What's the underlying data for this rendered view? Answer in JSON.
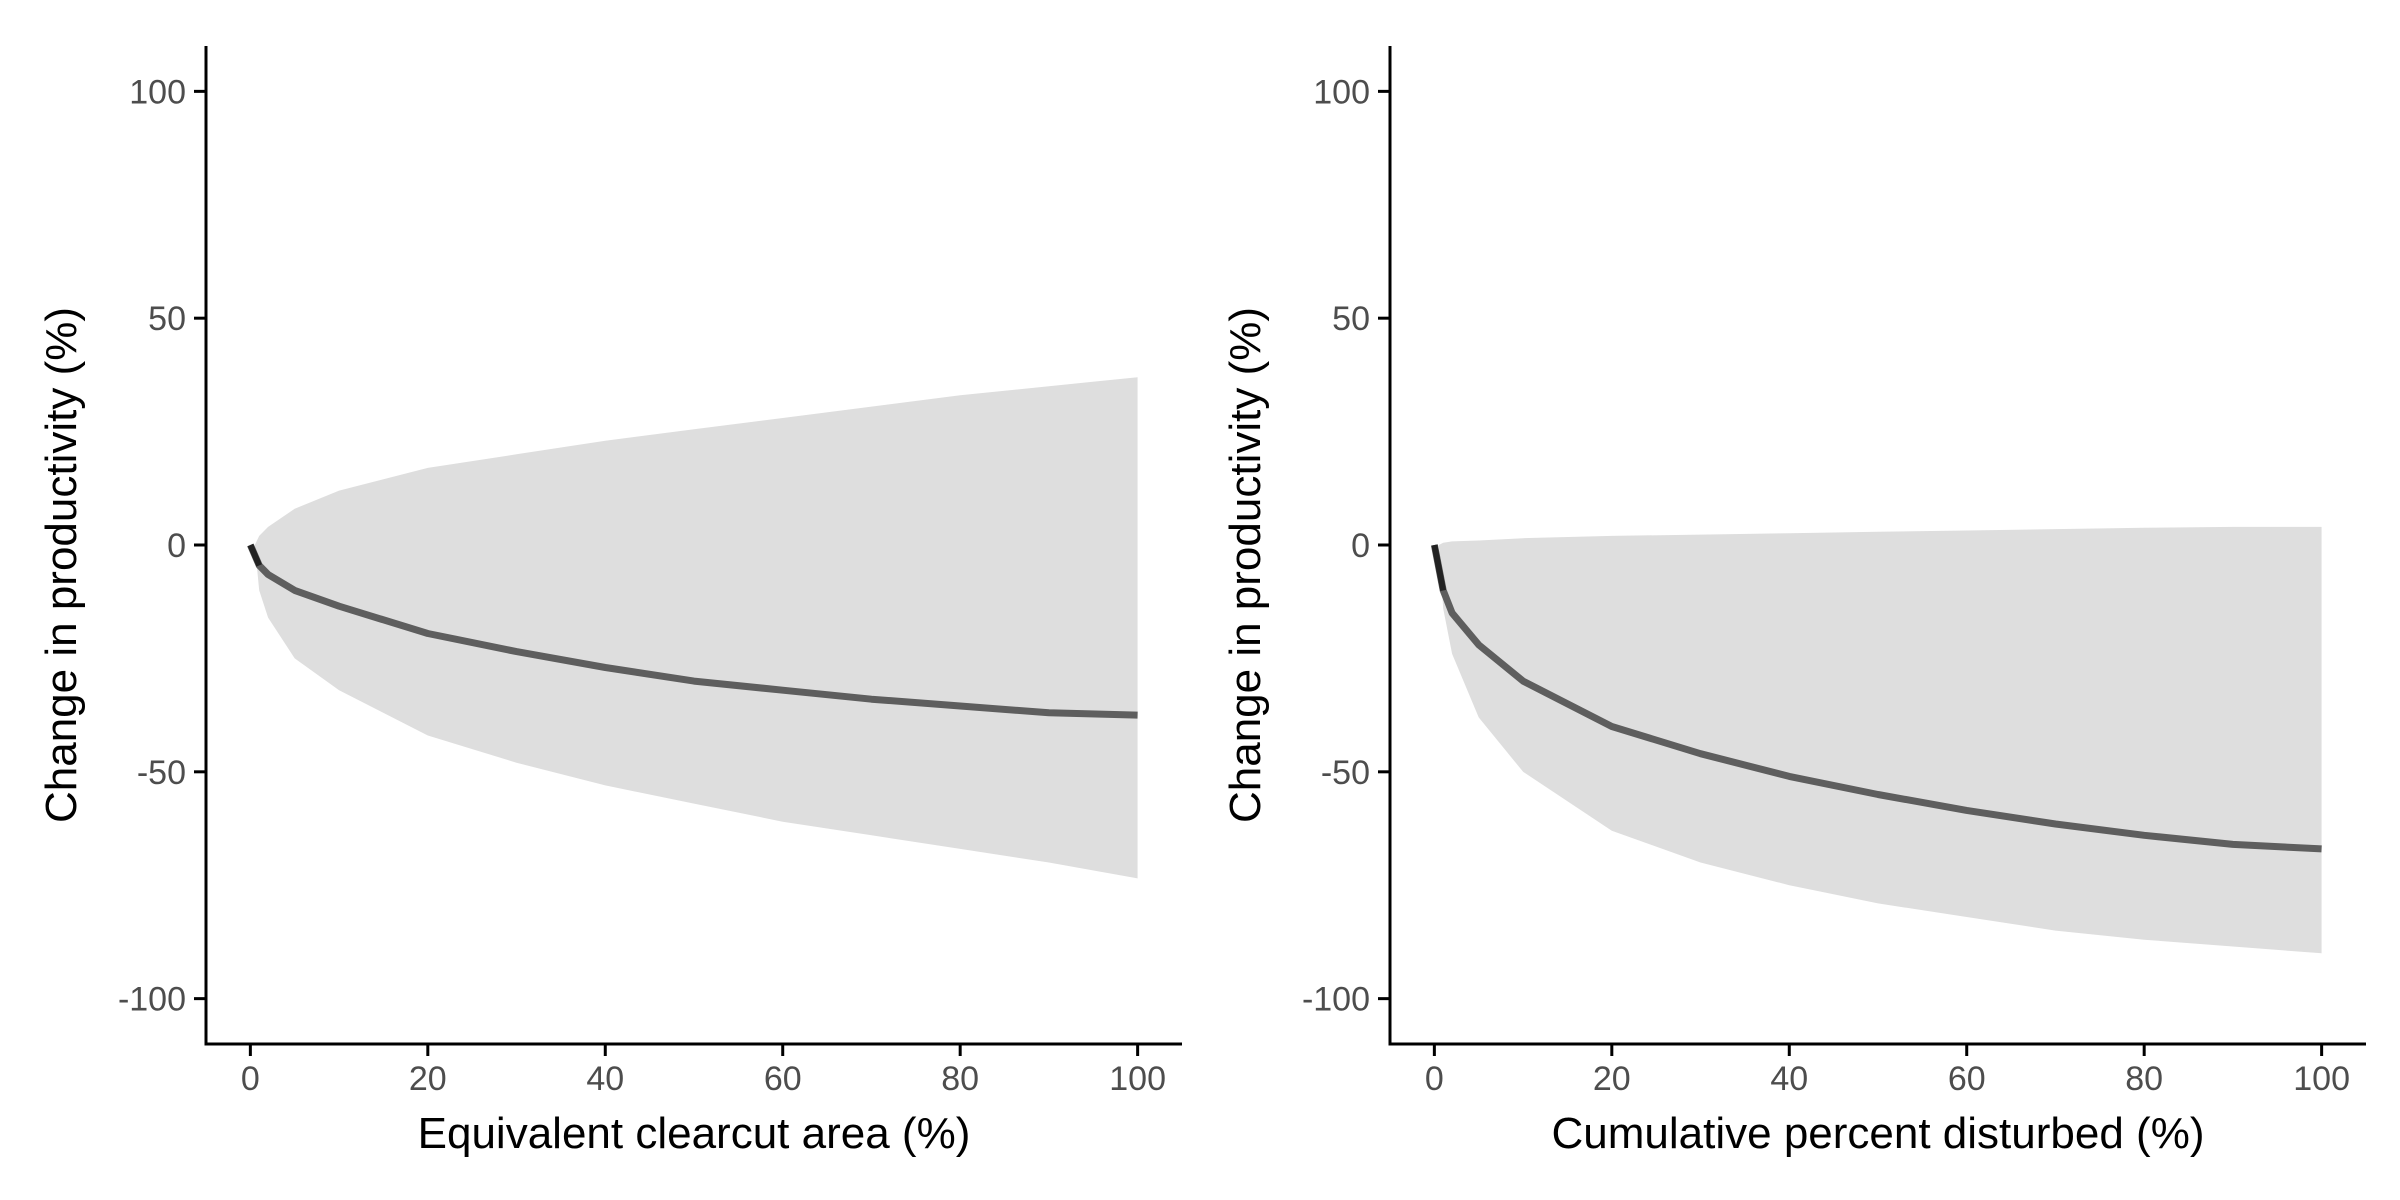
{
  "colors": {
    "band": "#dedede",
    "line": "#5e5e5e",
    "axis": "#000000",
    "tick_text": "#4d4d4d"
  },
  "chart_data": [
    {
      "type": "line",
      "xlabel": "Equivalent clearcut area (%)",
      "ylabel": "Change in productivity (%)",
      "xlim": [
        -5,
        105
      ],
      "ylim": [
        -110,
        110
      ],
      "xticks": [
        0,
        20,
        40,
        60,
        80,
        100
      ],
      "yticks": [
        -100,
        -50,
        0,
        50,
        100
      ],
      "grid": false,
      "series": [
        {
          "kind": "line",
          "x": [
            0,
            1,
            2,
            5,
            10,
            20,
            30,
            40,
            50,
            60,
            70,
            80,
            90,
            100
          ],
          "y": [
            0,
            -4.5,
            -6.5,
            -10,
            -13.5,
            -19.5,
            -23.5,
            -27,
            -30,
            -32,
            -34,
            -35.5,
            -37,
            -37.5
          ]
        },
        {
          "kind": "ribbon",
          "x": [
            0.5,
            1,
            2,
            5,
            10,
            20,
            30,
            40,
            50,
            60,
            70,
            80,
            90,
            100
          ],
          "upper": [
            0,
            2,
            4,
            8,
            12,
            17,
            20,
            23,
            25.5,
            28,
            30.5,
            33,
            35,
            37
          ],
          "lower": [
            0,
            -10,
            -16,
            -25,
            -32,
            -42,
            -48,
            -53,
            -57,
            -61,
            -64,
            -67,
            -70,
            -73.5
          ]
        }
      ]
    },
    {
      "type": "line",
      "xlabel": "Cumulative percent disturbed (%)",
      "ylabel": "Change in productivity (%)",
      "xlim": [
        -5,
        105
      ],
      "ylim": [
        -110,
        110
      ],
      "xticks": [
        0,
        20,
        40,
        60,
        80,
        100
      ],
      "yticks": [
        -100,
        -50,
        0,
        50,
        100
      ],
      "grid": false,
      "series": [
        {
          "kind": "line",
          "x": [
            0,
            1,
            2,
            5,
            10,
            20,
            30,
            40,
            50,
            60,
            70,
            80,
            90,
            100
          ],
          "y": [
            0,
            -10,
            -15,
            -22,
            -30,
            -40,
            -46,
            -51,
            -55,
            -58.5,
            -61.5,
            -64,
            -66,
            -67
          ]
        },
        {
          "kind": "ribbon",
          "x": [
            0.5,
            1,
            2,
            5,
            10,
            20,
            30,
            40,
            50,
            60,
            70,
            80,
            90,
            100
          ],
          "upper": [
            0,
            0.5,
            0.8,
            1,
            1.5,
            2,
            2.3,
            2.6,
            2.9,
            3.2,
            3.5,
            3.8,
            4,
            4
          ],
          "lower": [
            0,
            -14,
            -24,
            -38,
            -50,
            -63,
            -70,
            -75,
            -79,
            -82,
            -85,
            -87,
            -88.5,
            -90
          ]
        }
      ]
    }
  ]
}
